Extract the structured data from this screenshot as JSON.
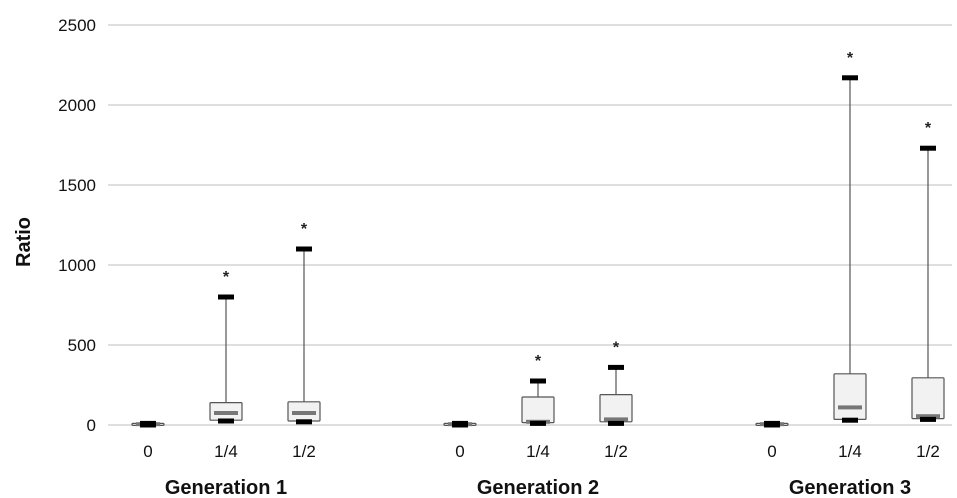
{
  "chart_data": {
    "type": "box",
    "ylabel": "Ratio",
    "ylim": [
      0,
      2500
    ],
    "yticks": [
      0,
      500,
      1000,
      1500,
      2000,
      2500
    ],
    "grid": true,
    "colors": {
      "box_fill": "#f2f2f2",
      "box_stroke": "#555555",
      "median": "#777777",
      "cap": "#000000",
      "grid": "#bfbfbf"
    },
    "significance_marker": "*",
    "groups": [
      {
        "name": "Generation 1",
        "boxes": [
          {
            "label": "0",
            "min": 0,
            "q1": 0,
            "median": 5,
            "q3": 10,
            "max": 10,
            "star": false
          },
          {
            "label": "1/4",
            "min": 25,
            "q1": 30,
            "median": 75,
            "q3": 140,
            "max": 800,
            "star": true
          },
          {
            "label": "1/2",
            "min": 20,
            "q1": 25,
            "median": 75,
            "q3": 145,
            "max": 1100,
            "star": true
          }
        ]
      },
      {
        "name": "Generation 2",
        "boxes": [
          {
            "label": "0",
            "min": 0,
            "q1": 0,
            "median": 5,
            "q3": 10,
            "max": 10,
            "star": false
          },
          {
            "label": "1/4",
            "min": 10,
            "q1": 15,
            "median": 20,
            "q3": 175,
            "max": 275,
            "star": true
          },
          {
            "label": "1/2",
            "min": 10,
            "q1": 20,
            "median": 35,
            "q3": 190,
            "max": 360,
            "star": true
          }
        ]
      },
      {
        "name": "Generation 3",
        "boxes": [
          {
            "label": "0",
            "min": 0,
            "q1": 0,
            "median": 5,
            "q3": 10,
            "max": 10,
            "star": false
          },
          {
            "label": "1/4",
            "min": 30,
            "q1": 35,
            "median": 110,
            "q3": 320,
            "max": 2170,
            "star": true
          },
          {
            "label": "1/2",
            "min": 35,
            "q1": 40,
            "median": 55,
            "q3": 295,
            "max": 1730,
            "star": true
          }
        ]
      }
    ]
  }
}
